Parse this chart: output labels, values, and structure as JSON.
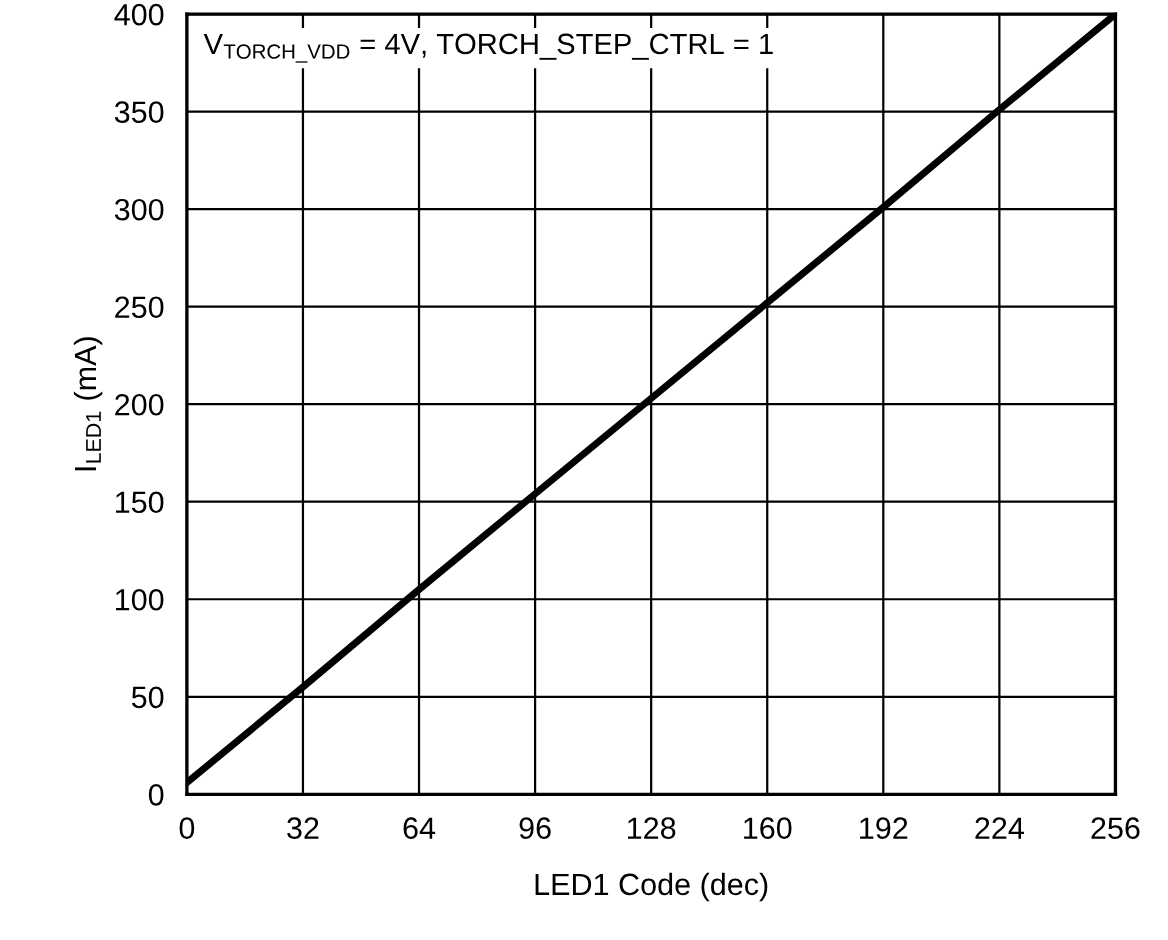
{
  "chart_data": {
    "type": "line",
    "xlabel": "LED1 Code (dec)",
    "ylabel": "I$_{LED1}$ (mA)",
    "annotations": [
      "V$_{TORCH_VDD}$ = 4V, TORCH_STEP_CTRL = 1"
    ],
    "series": [
      {
        "color": "#000000",
        "x": [
          0,
          32,
          64,
          96,
          128,
          160,
          192,
          224,
          256
        ],
        "values": [
          6,
          55,
          105,
          154,
          203,
          252,
          301,
          351,
          400
        ]
      }
    ],
    "xlim": [
      0,
      256
    ],
    "xticks": [
      0,
      32,
      64,
      96,
      128,
      160,
      192,
      224,
      256
    ],
    "ylim": [
      0,
      400
    ],
    "yticks": [
      0,
      50,
      100,
      150,
      200,
      250,
      300,
      350,
      400
    ],
    "grid": true,
    "line_style": "solid",
    "marker": "none"
  }
}
